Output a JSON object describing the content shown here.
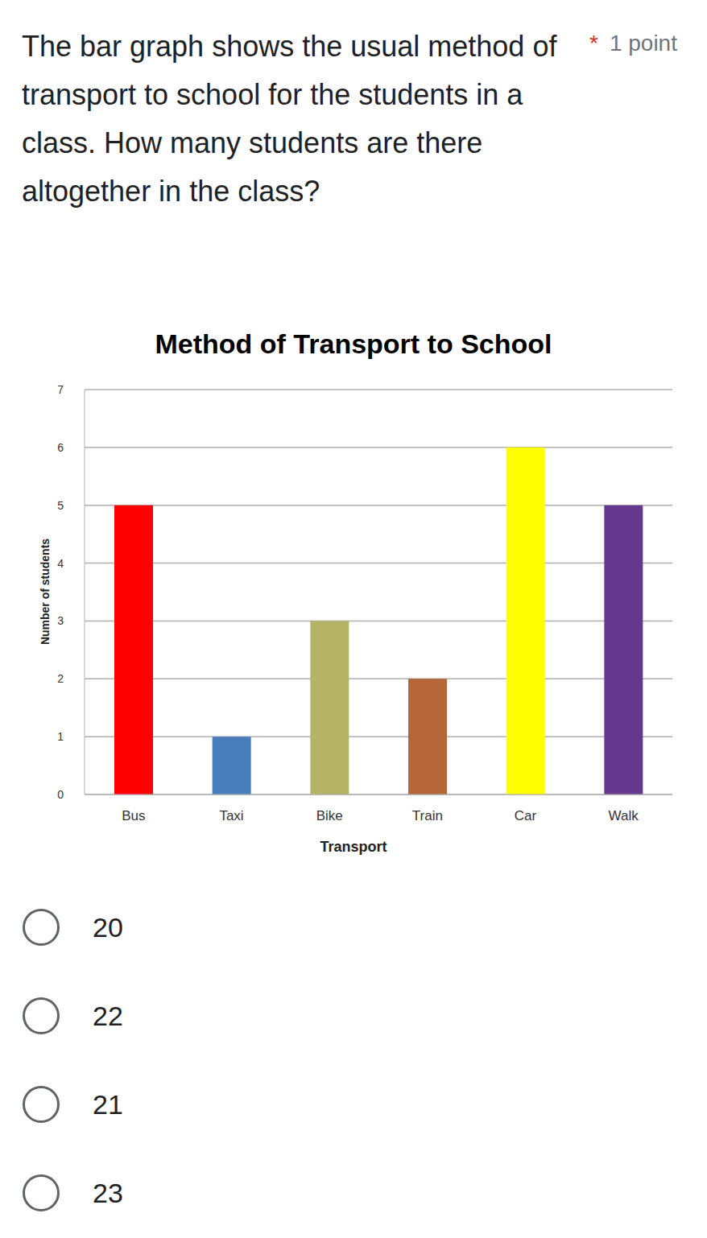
{
  "header": {
    "question": "The bar graph shows the usual method of transport to school for the students in a class. How many students are there altogether in the class?",
    "required": "*",
    "points": "1 point"
  },
  "chart_data": {
    "type": "bar",
    "title": "Method of Transport to School",
    "x_label": "Transport",
    "y_label": "Number of students",
    "categories": [
      "Bus",
      "Taxi",
      "Bike",
      "Train",
      "Car",
      "Walk"
    ],
    "values": [
      5,
      1,
      3,
      2,
      6,
      5
    ],
    "colors": [
      "#ff0000",
      "#4a7ebb",
      "#b5b365",
      "#b5663a",
      "#ffff00",
      "#65398e"
    ],
    "ylim": [
      0,
      7
    ],
    "yticks": [
      0,
      1,
      2,
      3,
      4,
      5,
      6,
      7
    ],
    "grid": true
  },
  "options": [
    "20",
    "22",
    "21",
    "23"
  ]
}
